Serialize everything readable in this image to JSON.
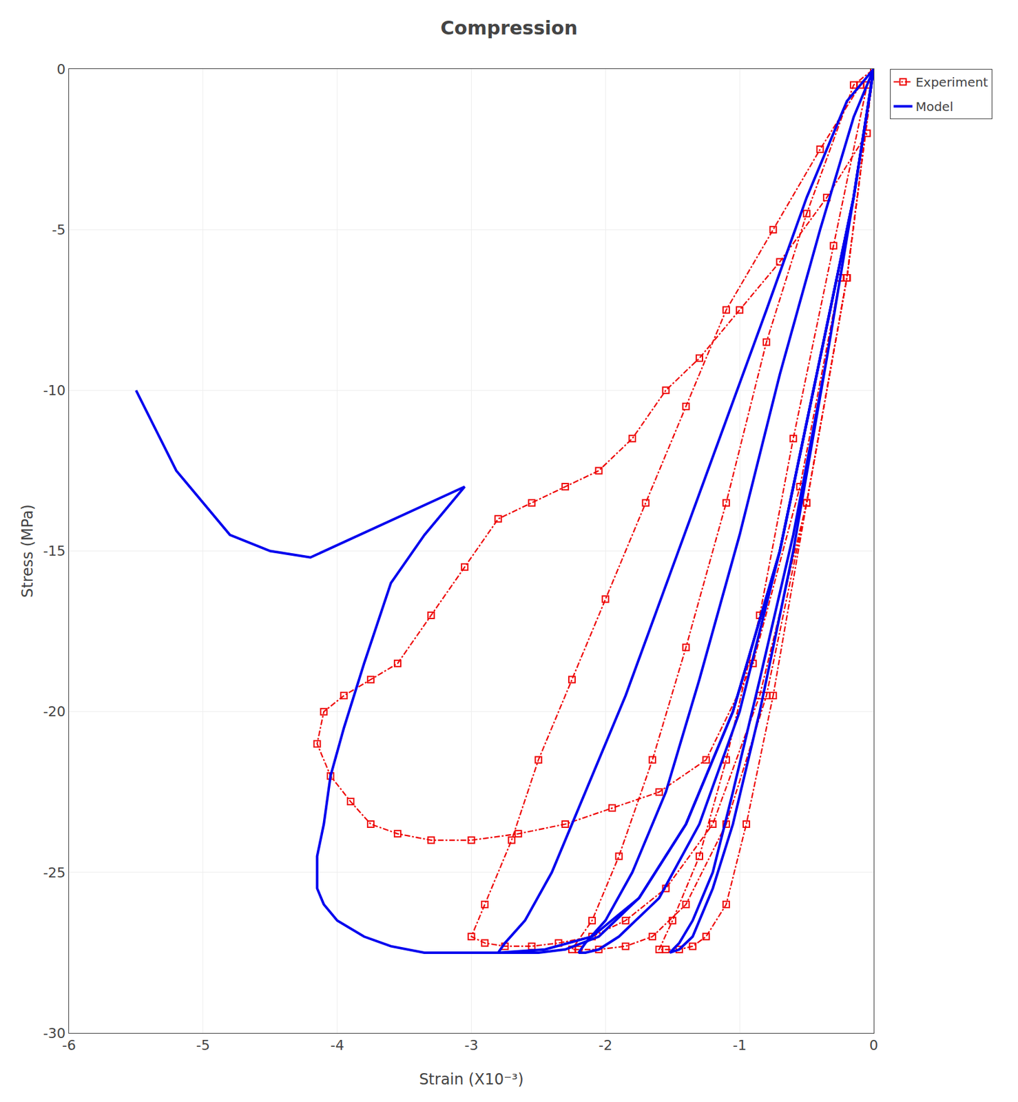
{
  "chart_data": {
    "type": "line",
    "title": "Compression",
    "xlabel": "Strain (X10⁻³)",
    "ylabel": "Stress (MPa)",
    "xlim": [
      -6,
      0
    ],
    "ylim": [
      -30,
      0
    ],
    "xticks": [
      0,
      -1,
      -2,
      -3,
      -4,
      -5,
      -6
    ],
    "yticks": [
      0,
      -5,
      -10,
      -15,
      -20,
      -25,
      -30
    ],
    "grid": true,
    "legend": "upper right",
    "series": [
      {
        "name": "Experiment",
        "color": "#EE0000",
        "line_style": "dashdot",
        "marker": "square",
        "x": [
          0.0,
          -0.2,
          -0.5,
          -0.75,
          -0.95,
          -1.1,
          -1.25,
          -1.35,
          -1.45,
          -1.55,
          -1.6,
          -1.5,
          -1.3,
          -1.1,
          -0.85,
          -0.6,
          -0.3,
          -0.05,
          0.0
        ],
        "values": [
          0,
          -6.5,
          -13.5,
          -19.5,
          -23.5,
          -26.0,
          -27.0,
          -27.3,
          -27.4,
          -27.4,
          -27.4,
          -26.5,
          -24.5,
          -21.5,
          -17.0,
          -11.5,
          -5.5,
          -0.5,
          0.0
        ]
      },
      {
        "name": "Experiment",
        "color": "#EE0000",
        "line_style": "dashdot",
        "marker": "square",
        "x": [
          0.0,
          -0.2,
          -0.5,
          -0.8,
          -1.1,
          -1.4,
          -1.65,
          -1.85,
          -2.05,
          -2.2,
          -2.25,
          -2.1,
          -1.9,
          -1.65,
          -1.4,
          -1.1,
          -0.8,
          -0.5,
          -0.15,
          0.0
        ],
        "values": [
          0,
          -6.5,
          -13.5,
          -19.5,
          -23.5,
          -26.0,
          -27.0,
          -27.3,
          -27.4,
          -27.4,
          -27.4,
          -26.5,
          -24.5,
          -21.5,
          -18.0,
          -13.5,
          -8.5,
          -4.5,
          -0.5,
          0.0
        ]
      },
      {
        "name": "Experiment",
        "color": "#EE0000",
        "line_style": "dashdot",
        "marker": "square",
        "x": [
          0.0,
          -0.2,
          -0.5,
          -0.85,
          -1.2,
          -1.55,
          -1.85,
          -2.1,
          -2.35,
          -2.55,
          -2.75,
          -2.9,
          -3.0,
          -2.9,
          -2.7,
          -2.5,
          -2.25,
          -2.0,
          -1.7,
          -1.4,
          -1.1,
          -0.75,
          -0.4,
          -0.1,
          0.0
        ],
        "values": [
          0,
          -6.5,
          -13.5,
          -19.5,
          -23.5,
          -25.5,
          -26.5,
          -27.0,
          -27.2,
          -27.3,
          -27.3,
          -27.2,
          -27.0,
          -26.0,
          -24.0,
          -21.5,
          -19.0,
          -16.5,
          -13.5,
          -10.5,
          -7.5,
          -5.0,
          -2.5,
          -0.5,
          0.0
        ]
      },
      {
        "name": "Experiment",
        "color": "#EE0000",
        "line_style": "dashdot",
        "marker": "square",
        "x": [
          0.0,
          -0.25,
          -0.55,
          -0.9,
          -1.25,
          -1.6,
          -1.95,
          -2.3,
          -2.65,
          -3.0,
          -3.3,
          -3.55,
          -3.75,
          -3.9,
          -4.05,
          -4.15,
          -4.1,
          -3.95,
          -3.75,
          -3.55,
          -3.3,
          -3.05,
          -2.8,
          -2.55,
          -2.3,
          -2.05,
          -1.8,
          -1.55,
          -1.3,
          -1.0,
          -0.7,
          -0.35,
          -0.05
        ],
        "values": [
          0,
          -6.5,
          -13.0,
          -18.5,
          -21.5,
          -22.5,
          -23.0,
          -23.5,
          -23.8,
          -24.0,
          -24.0,
          -23.8,
          -23.5,
          -22.8,
          -22.0,
          -21.0,
          -20.0,
          -19.5,
          -19.0,
          -18.5,
          -17.0,
          -15.5,
          -14.0,
          -13.5,
          -13.0,
          -12.5,
          -11.5,
          -10.0,
          -9.0,
          -7.5,
          -6.0,
          -4.0,
          -2.0
        ]
      },
      {
        "name": "Model",
        "color": "#0000EE",
        "line_style": "solid",
        "x": [
          0,
          -0.15,
          -0.35,
          -0.6,
          -0.85,
          -1.05,
          -1.2,
          -1.35,
          -1.45,
          -1.52,
          -1.52,
          -1.45,
          -1.35,
          -1.2,
          -1.05,
          -0.85,
          -0.6,
          -0.35,
          -0.15,
          0.0
        ],
        "values": [
          0,
          -4,
          -9,
          -15,
          -20,
          -23.5,
          -25.5,
          -27.0,
          -27.4,
          -27.5,
          -27.5,
          -27.2,
          -26.5,
          -25.0,
          -22.5,
          -19.0,
          -14.5,
          -9.0,
          -4.0,
          0.0
        ]
      },
      {
        "name": "Model",
        "color": "#0000EE",
        "line_style": "solid",
        "x": [
          0,
          -0.15,
          -0.4,
          -0.7,
          -1.0,
          -1.3,
          -1.6,
          -1.9,
          -2.05,
          -2.15,
          -2.2,
          -2.2,
          -2.15,
          -2.0,
          -1.8,
          -1.55,
          -1.3,
          -1.0,
          -0.7,
          -0.4,
          -0.15,
          0.0
        ],
        "values": [
          0,
          -4,
          -9,
          -15,
          -20,
          -23.5,
          -25.8,
          -27.0,
          -27.4,
          -27.5,
          -27.5,
          -27.5,
          -27.2,
          -26.5,
          -25.0,
          -22.5,
          -19.0,
          -14.5,
          -9.5,
          -5.0,
          -1.5,
          0.0
        ]
      },
      {
        "name": "Model",
        "color": "#0000EE",
        "line_style": "solid",
        "x": [
          0,
          -0.15,
          -0.4,
          -0.7,
          -1.05,
          -1.4,
          -1.75,
          -2.05,
          -2.3,
          -2.5,
          -2.65,
          -2.75,
          -2.8,
          -2.8,
          -2.75,
          -2.6,
          -2.4,
          -2.15,
          -1.85,
          -1.5,
          -1.15,
          -0.8,
          -0.5,
          -0.2,
          0.0
        ],
        "values": [
          0,
          -4,
          -9,
          -15,
          -20,
          -23.5,
          -25.8,
          -27.0,
          -27.4,
          -27.5,
          -27.5,
          -27.5,
          -27.5,
          -27.5,
          -27.2,
          -26.5,
          -25.0,
          -22.5,
          -19.5,
          -15.5,
          -11.5,
          -7.5,
          -4.0,
          -1.0,
          0.0
        ]
      },
      {
        "name": "Model",
        "color": "#0000EE",
        "line_style": "solid",
        "x": [
          0,
          -0.15,
          -0.4,
          -0.7,
          -1.05,
          -1.4,
          -1.75,
          -2.1,
          -2.45,
          -2.8,
          -3.1,
          -3.35,
          -3.6,
          -3.8,
          -4.0,
          -4.1,
          -4.15,
          -4.15,
          -4.1,
          -4.05,
          -3.95,
          -3.8,
          -3.6,
          -3.35,
          -3.05,
          -4.2,
          -4.5,
          -4.8,
          -5.2,
          -5.5
        ],
        "values": [
          0,
          -4,
          -9,
          -15,
          -20,
          -23.5,
          -25.8,
          -27.0,
          -27.4,
          -27.5,
          -27.5,
          -27.5,
          -27.3,
          -27.0,
          -26.5,
          -26.0,
          -25.5,
          -24.5,
          -23.5,
          -22.0,
          -20.5,
          -18.5,
          -16.0,
          -14.5,
          -13.0,
          -15.2,
          -15.0,
          -14.5,
          -12.5,
          -10.0
        ]
      }
    ]
  }
}
